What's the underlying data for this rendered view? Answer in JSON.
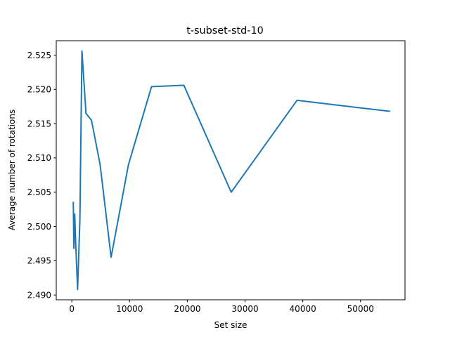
{
  "chart_data": {
    "type": "line",
    "title": "t-subset-std-10",
    "xlabel": "Set size",
    "ylabel": "Average number of rotations",
    "xlim": [
      -2700,
      57700
    ],
    "ylim": [
      2.4893,
      2.5271
    ],
    "xticks": [
      0,
      10000,
      20000,
      30000,
      40000,
      50000
    ],
    "xtick_labels": [
      "0",
      "10000",
      "20000",
      "30000",
      "40000",
      "50000"
    ],
    "yticks": [
      2.49,
      2.495,
      2.5,
      2.505,
      2.51,
      2.515,
      2.52,
      2.525
    ],
    "ytick_labels": [
      "2.490",
      "2.495",
      "2.500",
      "2.505",
      "2.510",
      "2.515",
      "2.520",
      "2.525"
    ],
    "grid": false,
    "series": [
      {
        "color": "#1f77b4",
        "x": [
          250,
          350,
          500,
          700,
          1000,
          1400,
          1750,
          2450,
          3400,
          4900,
          6800,
          9800,
          13800,
          19400,
          27600,
          39000,
          55000
        ],
        "y": [
          2.5035,
          2.4968,
          2.5018,
          2.4968,
          2.4908,
          2.5012,
          2.5256,
          2.5165,
          2.5155,
          2.509,
          2.4955,
          2.509,
          2.5204,
          2.5206,
          2.505,
          2.5184,
          2.5168
        ]
      }
    ]
  }
}
